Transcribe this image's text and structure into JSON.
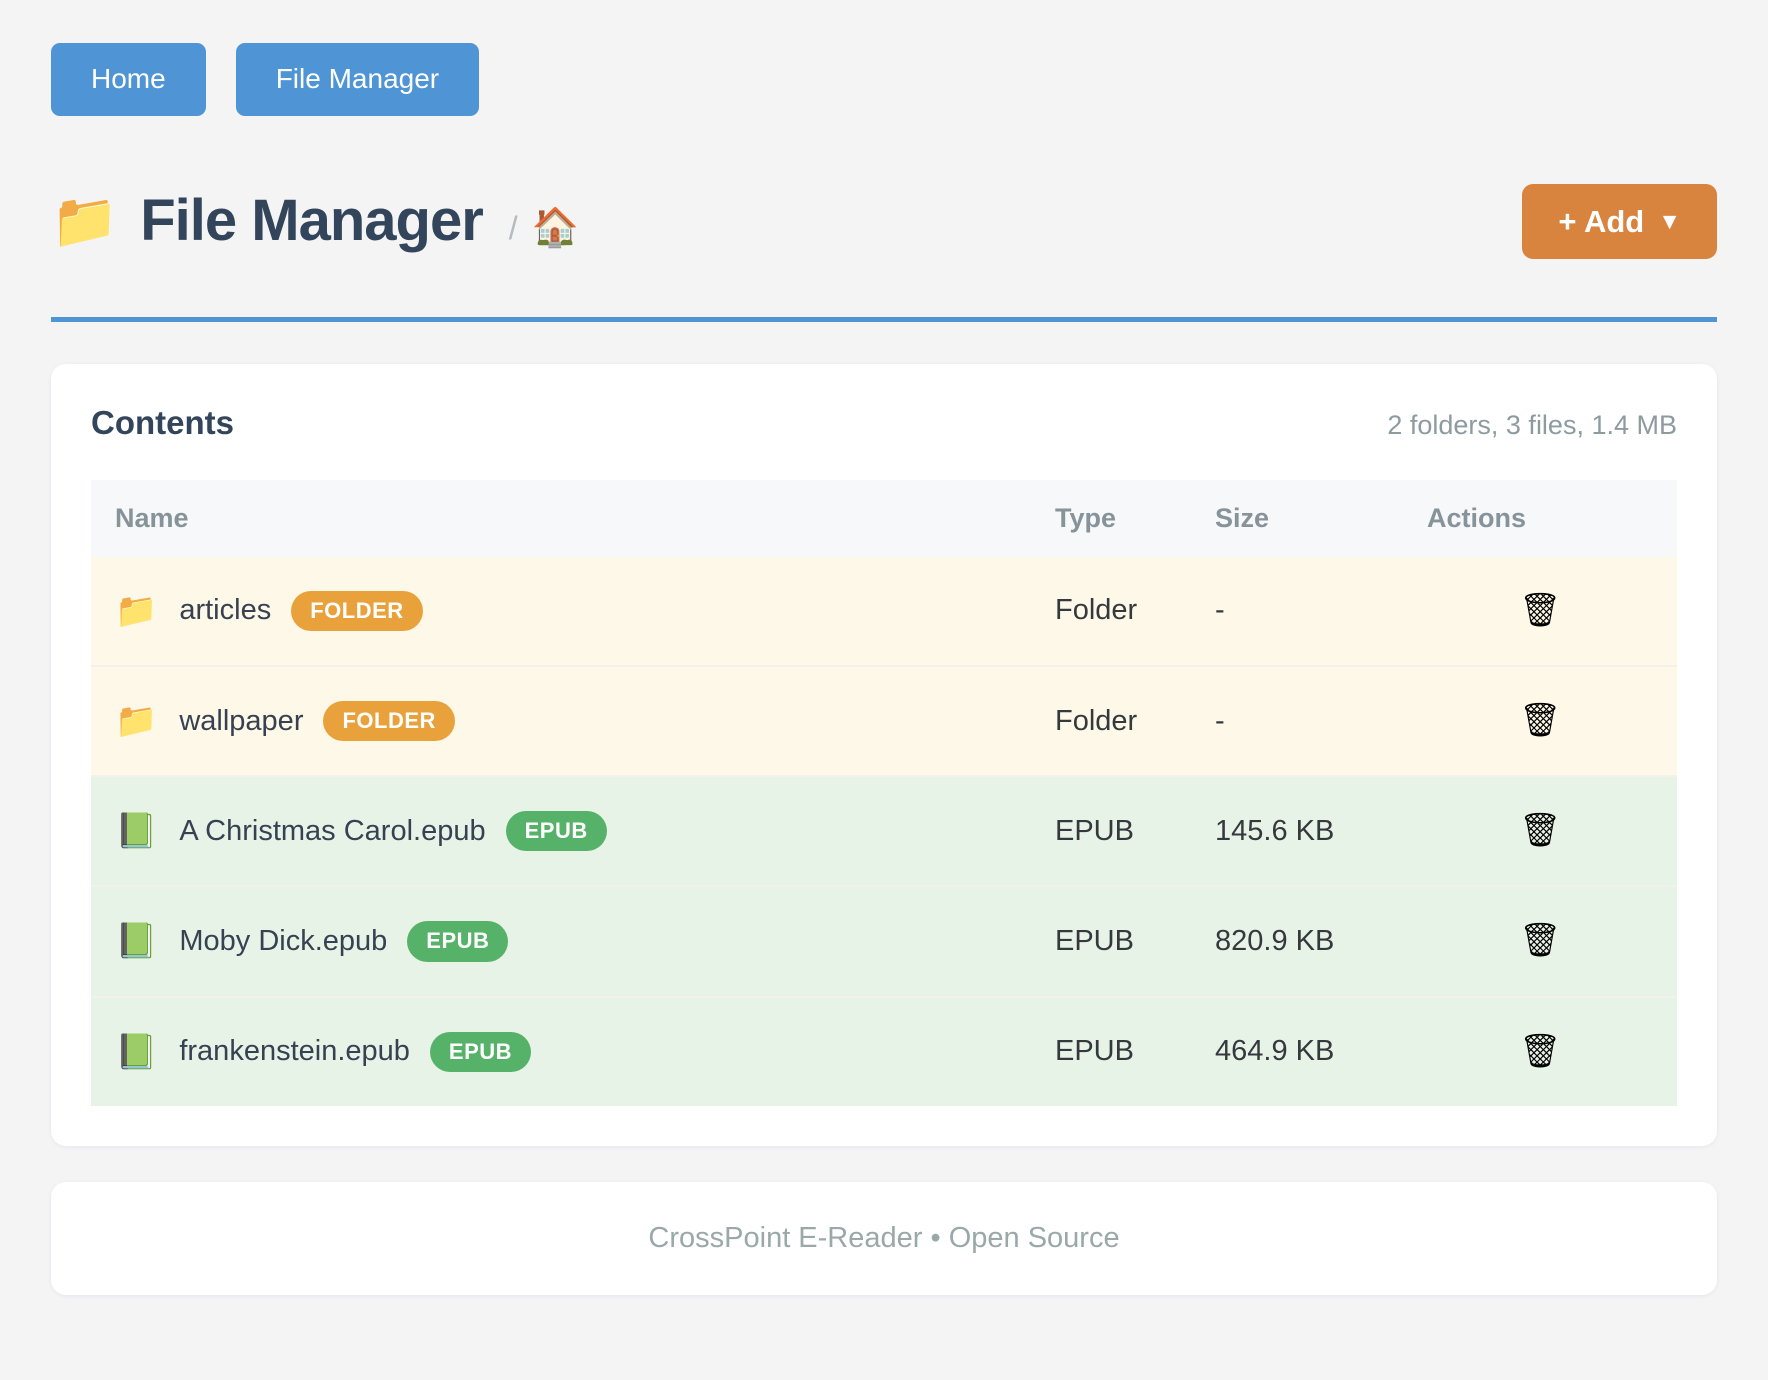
{
  "nav": {
    "home_label": "Home",
    "file_manager_label": "File Manager"
  },
  "header": {
    "folder_icon": "📁",
    "title": "File Manager",
    "breadcrumb_separator": "/",
    "home_icon": "🏠",
    "add_button": {
      "label": "+ Add",
      "caret": "▼"
    }
  },
  "contents": {
    "title": "Contents",
    "summary": "2 folders, 3 files, 1.4 MB",
    "columns": [
      "Name",
      "Type",
      "Size",
      "Actions"
    ],
    "rows": [
      {
        "icon": "📁",
        "name": "articles",
        "badge": "FOLDER",
        "type": "Folder",
        "size": "-",
        "delete_icon": "🗑"
      },
      {
        "icon": "📁",
        "name": "wallpaper",
        "badge": "FOLDER",
        "type": "Folder",
        "size": "-",
        "delete_icon": "🗑"
      },
      {
        "icon": "📗",
        "name": "A Christmas Carol.epub",
        "badge": "EPUB",
        "type": "EPUB",
        "size": "145.6 KB",
        "delete_icon": "🗑"
      },
      {
        "icon": "📗",
        "name": "Moby Dick.epub",
        "badge": "EPUB",
        "type": "EPUB",
        "size": "820.9 KB",
        "delete_icon": "🗑"
      },
      {
        "icon": "📗",
        "name": "frankenstein.epub",
        "badge": "EPUB",
        "type": "EPUB",
        "size": "464.9 KB",
        "delete_icon": "🗑"
      }
    ]
  },
  "footer": {
    "text": "CrossPoint E-Reader • Open Source"
  },
  "colors": {
    "accent-blue": "#4f94d5",
    "title-navy": "#33455b",
    "add-orange": "#d9843e",
    "badge-orange": "#e9a23b",
    "badge-green": "#57b269",
    "row-cream": "#fdf8e7",
    "row-green": "#e8f3e8",
    "page-bg": "#f4f4f5",
    "muted-gray": "#8d9ba0"
  }
}
